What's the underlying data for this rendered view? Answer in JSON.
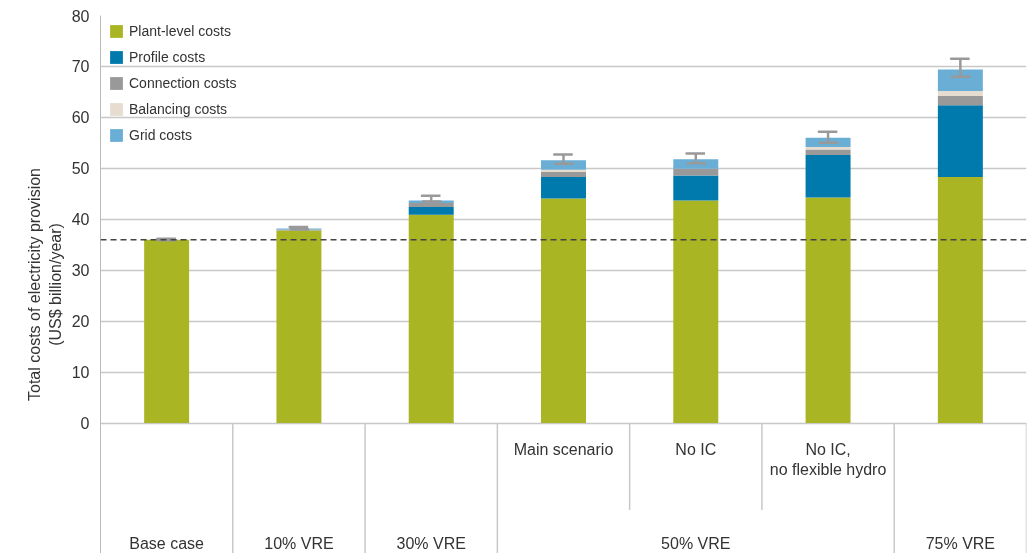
{
  "chart_data": {
    "type": "bar",
    "stacked": true,
    "ylabel": "Total costs of electricity provision\n(US$ billion/year)",
    "categories": [
      "Base case",
      "10% VRE",
      "30% VRE",
      "Main scenario",
      "No IC",
      "No IC, no flexible hydro",
      "75% VRE"
    ],
    "series": [
      {
        "name": "Plant-level costs",
        "color": "#a9b523",
        "values": [
          36.0,
          37.8,
          40.9,
          44.1,
          43.7,
          44.3,
          48.3
        ]
      },
      {
        "name": "Profile costs",
        "color": "#007aad",
        "values": [
          0,
          null,
          1.5,
          4.2,
          4.9,
          8.3,
          14.1
        ]
      },
      {
        "name": "Connection costs",
        "color": "#999999",
        "values": [
          0,
          0.2,
          0.8,
          1.0,
          1.3,
          1.1,
          1.8
        ]
      },
      {
        "name": "Balancing costs",
        "color": "#e6ddd0",
        "values": [
          0,
          0,
          null,
          0.4,
          null,
          0.5,
          1.0
        ]
      },
      {
        "name": "Grid costs",
        "color": "#6aaed6",
        "values": [
          0,
          0.2,
          0.5,
          1.9,
          1.9,
          1.8,
          4.2
        ],
        "errors": [
          [
            35.9,
            36.2
          ],
          [
            38.0,
            38.5
          ],
          [
            43.5,
            44.6
          ],
          [
            50.9,
            52.7
          ],
          [
            51.0,
            52.9
          ],
          [
            55.0,
            57.2
          ],
          [
            68.0,
            71.5
          ]
        ]
      }
    ],
    "ylim": [
      0,
      80
    ],
    "yticks": [
      0,
      10,
      20,
      30,
      40,
      50,
      60,
      70,
      80
    ],
    "ref_lines": [
      {
        "axis": "y",
        "value": 36,
        "line_style": "dashed",
        "color": "#444444"
      }
    ],
    "annotations": [
      "50% VRE"
    ],
    "grid": "y",
    "legend": "top left"
  }
}
